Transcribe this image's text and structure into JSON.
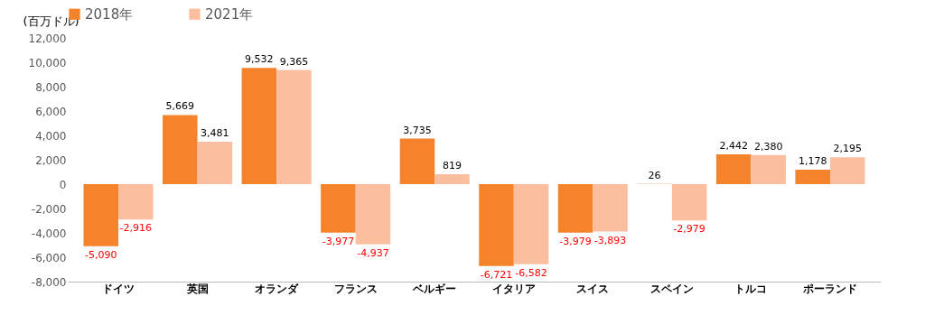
{
  "chart_data": {
    "type": "bar",
    "ylabel": "(百万ドル)",
    "categories": [
      "ドイツ",
      "英国",
      "オランダ",
      "フランス",
      "ベルギー",
      "イタリア",
      "スイス",
      "スペイン",
      "トルコ",
      "ポーランド"
    ],
    "series": [
      {
        "name": "2018年",
        "color": "#f4832b",
        "values": [
          -5090,
          5669,
          9532,
          -3977,
          3735,
          -6721,
          -3979,
          26,
          2442,
          1178
        ],
        "value_labels": [
          "-5,090",
          "5,669",
          "9,532",
          "-3,977",
          "3,735",
          "-6,721",
          "-3,979",
          "26",
          "2,442",
          "1,178"
        ]
      },
      {
        "name": "2021年",
        "color": "#fbbfa0",
        "values": [
          -2916,
          3481,
          9365,
          -4937,
          819,
          -6582,
          -3893,
          -2979,
          2380,
          2195
        ],
        "value_labels": [
          "-2,916",
          "3,481",
          "9,365",
          "-4,937",
          "819",
          "-6,582",
          "-3,893",
          "-2,979",
          "2,380",
          "2,195"
        ]
      }
    ],
    "ylim": [
      -8000,
      12000
    ],
    "yticks": [
      {
        "value": -8000,
        "label": "-8,000"
      },
      {
        "value": -6000,
        "label": "-6,000"
      },
      {
        "value": -4000,
        "label": "-4,000"
      },
      {
        "value": -2000,
        "label": "-2,000"
      },
      0,
      {
        "value": 2000,
        "label": "2,000"
      },
      {
        "value": 4000,
        "label": "4,000"
      },
      {
        "value": 6000,
        "label": "6,000"
      },
      {
        "value": 8000,
        "label": "8,000"
      },
      {
        "value": 10000,
        "label": "10,000"
      },
      {
        "value": 12000,
        "label": "12,000"
      }
    ],
    "grid": false,
    "legend": "top"
  }
}
